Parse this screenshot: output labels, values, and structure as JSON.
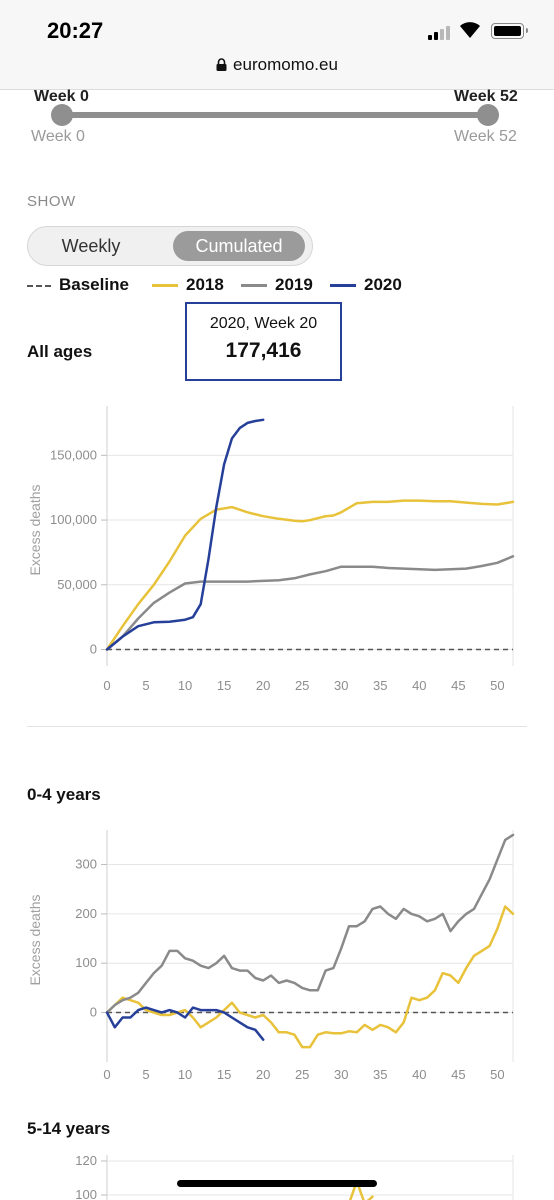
{
  "status_bar": {
    "time": "20:27"
  },
  "browser": {
    "url": "euromomo.eu"
  },
  "slider": {
    "start_top": "Week 0",
    "end_top": "Week 52",
    "start_label": "Week 0",
    "end_label": "Week 52"
  },
  "show": {
    "label": "SHOW",
    "options": [
      "Weekly",
      "Cumulated"
    ],
    "selected": "Cumulated"
  },
  "legend": [
    {
      "label": "Baseline",
      "color": "#555555",
      "style": "dashed"
    },
    {
      "label": "2018",
      "color": "#e8c23a",
      "style": "solid"
    },
    {
      "label": "2019",
      "color": "#8a8a8a",
      "style": "solid"
    },
    {
      "label": "2020",
      "color": "#26409a",
      "style": "solid"
    }
  ],
  "tooltip": {
    "title": "2020, Week 20",
    "value": "177,416"
  },
  "colors": {
    "2018": "#e8c23a",
    "2019": "#8a8a8a",
    "2020": "#26409a",
    "baseline": "#555555",
    "grid": "#e6e6e6"
  },
  "chart_data": [
    {
      "type": "line",
      "title": "All ages",
      "xlabel": "",
      "ylabel": "Excess deaths",
      "xlim": [
        0,
        52
      ],
      "ylim": [
        -5000,
        185000
      ],
      "xticks": [
        "0",
        "5",
        "10",
        "15",
        "20",
        "25",
        "30",
        "35",
        "40",
        "45",
        "50"
      ],
      "yticks": [
        {
          "value": 0,
          "label": "0"
        },
        {
          "value": 50000,
          "label": "50,000"
        },
        {
          "value": 100000,
          "label": "100,000"
        },
        {
          "value": 150000,
          "label": "150,000"
        }
      ],
      "grid": true,
      "baseline": 0,
      "series": [
        {
          "name": "2018",
          "x": [
            0,
            2,
            4,
            6,
            8,
            10,
            12,
            14,
            16,
            18,
            20,
            22,
            24,
            25,
            26,
            28,
            29,
            30,
            32,
            34,
            36,
            38,
            40,
            42,
            44,
            46,
            48,
            50,
            52
          ],
          "y": [
            0,
            18000,
            35000,
            50000,
            68000,
            88000,
            101000,
            108000,
            110000,
            106000,
            103000,
            101000,
            99500,
            99000,
            100000,
            103000,
            103500,
            106000,
            113000,
            114000,
            114000,
            115000,
            115000,
            114500,
            114500,
            113500,
            112500,
            112000,
            114000
          ]
        },
        {
          "name": "2019",
          "x": [
            0,
            2,
            4,
            6,
            8,
            10,
            12,
            14,
            16,
            18,
            20,
            22,
            24,
            26,
            28,
            30,
            32,
            34,
            36,
            38,
            40,
            42,
            44,
            46,
            48,
            50,
            52
          ],
          "y": [
            0,
            10000,
            24000,
            36000,
            44000,
            51000,
            52500,
            52500,
            52500,
            52500,
            53000,
            53500,
            55000,
            58000,
            60500,
            64000,
            64000,
            64000,
            63000,
            62500,
            62000,
            61500,
            62000,
            62500,
            64500,
            67000,
            72000
          ]
        },
        {
          "name": "2020",
          "x": [
            0,
            2,
            4,
            6,
            8,
            10,
            11,
            12,
            13,
            14,
            15,
            16,
            17,
            18,
            19,
            20
          ],
          "y": [
            0,
            10000,
            18000,
            21000,
            21500,
            23000,
            25000,
            35000,
            70000,
            110000,
            143000,
            163000,
            171000,
            175000,
            176500,
            177416
          ]
        }
      ]
    },
    {
      "type": "line",
      "title": "0-4 years",
      "xlabel": "",
      "ylabel": "Excess deaths",
      "xlim": [
        0,
        52
      ],
      "ylim": [
        -80,
        370
      ],
      "xticks": [
        "0",
        "5",
        "10",
        "15",
        "20",
        "25",
        "30",
        "35",
        "40",
        "45",
        "50"
      ],
      "yticks": [
        {
          "value": 0,
          "label": "0"
        },
        {
          "value": 100,
          "label": "100"
        },
        {
          "value": 200,
          "label": "200"
        },
        {
          "value": 300,
          "label": "300"
        }
      ],
      "grid": true,
      "baseline": 0,
      "series": [
        {
          "name": "2018",
          "x": [
            0,
            1,
            2,
            3,
            4,
            5,
            6,
            7,
            8,
            9,
            10,
            11,
            12,
            13,
            14,
            15,
            16,
            17,
            18,
            19,
            20,
            21,
            22,
            23,
            24,
            25,
            26,
            27,
            28,
            29,
            30,
            31,
            32,
            33,
            34,
            35,
            36,
            37,
            38,
            39,
            40,
            41,
            42,
            43,
            44,
            45,
            46,
            47,
            48,
            49,
            50,
            51,
            52
          ],
          "y": [
            0,
            15,
            30,
            25,
            20,
            5,
            0,
            -5,
            -5,
            0,
            5,
            -10,
            -30,
            -20,
            -10,
            5,
            20,
            0,
            -5,
            -10,
            -5,
            -20,
            -40,
            -40,
            -45,
            -70,
            -70,
            -45,
            -40,
            -42,
            -42,
            -38,
            -40,
            -25,
            -35,
            -25,
            -30,
            -40,
            -20,
            30,
            25,
            30,
            45,
            80,
            75,
            60,
            90,
            115,
            125,
            135,
            170,
            215,
            200
          ]
        },
        {
          "name": "2019",
          "x": [
            0,
            1,
            2,
            3,
            4,
            5,
            6,
            7,
            8,
            9,
            10,
            11,
            12,
            13,
            14,
            15,
            16,
            17,
            18,
            19,
            20,
            21,
            22,
            23,
            24,
            25,
            26,
            27,
            28,
            29,
            30,
            31,
            32,
            33,
            34,
            35,
            36,
            37,
            38,
            39,
            40,
            41,
            42,
            43,
            44,
            45,
            46,
            47,
            48,
            49,
            50,
            51,
            52
          ],
          "y": [
            0,
            15,
            25,
            30,
            40,
            60,
            80,
            95,
            125,
            125,
            110,
            105,
            95,
            90,
            100,
            115,
            90,
            85,
            85,
            70,
            65,
            75,
            60,
            65,
            60,
            50,
            45,
            45,
            85,
            90,
            130,
            175,
            175,
            185,
            210,
            215,
            200,
            190,
            210,
            200,
            195,
            185,
            190,
            200,
            165,
            185,
            200,
            210,
            240,
            270,
            310,
            350,
            360
          ]
        },
        {
          "name": "2020",
          "x": [
            0,
            1,
            2,
            3,
            4,
            5,
            6,
            7,
            8,
            9,
            10,
            11,
            12,
            13,
            14,
            15,
            16,
            17,
            18,
            19,
            20
          ],
          "y": [
            0,
            -30,
            -10,
            -10,
            5,
            10,
            5,
            0,
            5,
            0,
            -10,
            10,
            5,
            5,
            5,
            0,
            -10,
            -20,
            -30,
            -35,
            -55
          ]
        }
      ]
    },
    {
      "type": "line",
      "title": "5-14 years",
      "xlabel": "",
      "ylabel": "",
      "xlim": [
        0,
        52
      ],
      "ylim": [
        0,
        120
      ],
      "yticks": [
        {
          "value": 100,
          "label": "100"
        },
        {
          "value": 120,
          "label": "120"
        }
      ],
      "grid": true,
      "series": [
        {
          "name": "2018",
          "x": [
            30,
            31,
            32,
            33,
            34
          ],
          "y": [
            90,
            95,
            108,
            95,
            99
          ]
        }
      ]
    }
  ]
}
